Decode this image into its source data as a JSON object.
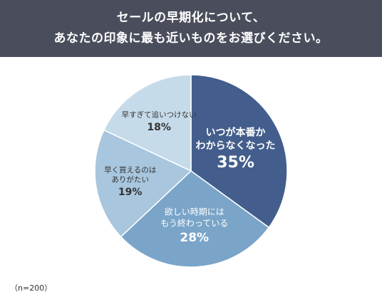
{
  "header": {
    "title_line1": "セールの早期化について、",
    "title_line2": "あなたの印象に最も近いものをお選びください。"
  },
  "note": "（n=200）",
  "chart_data": {
    "type": "pie",
    "title": "",
    "slices": [
      {
        "label_lines": [
          "いつが本番か",
          "わからなくなった"
        ],
        "value": 35,
        "value_label": "35%",
        "color": "#435e8c",
        "text_color": "#ffffff"
      },
      {
        "label_lines": [
          "欲しい時期には",
          "もう終わっている"
        ],
        "value": 28,
        "value_label": "28%",
        "color": "#7aa5c9",
        "text_color": "#ffffff"
      },
      {
        "label_lines": [
          "早く買えるのは",
          "ありがたい"
        ],
        "value": 19,
        "value_label": "19%",
        "color": "#a8c6dd",
        "text_color": "#333333"
      },
      {
        "label_lines": [
          "早すぎて追いつけない"
        ],
        "value": 18,
        "value_label": "18%",
        "color": "#c6dbea",
        "text_color": "#333333"
      }
    ]
  }
}
